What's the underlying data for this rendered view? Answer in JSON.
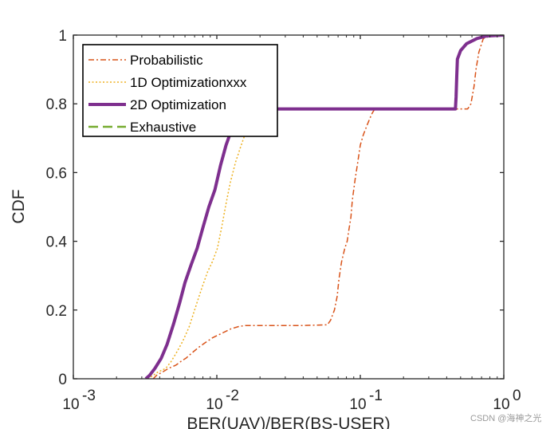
{
  "chart_data": {
    "type": "line",
    "title": "",
    "xlabel": "BER(UAV)/BER(BS-USER)",
    "ylabel": "CDF",
    "xscale": "log",
    "xlim": [
      0.001,
      1
    ],
    "ylim": [
      0,
      1
    ],
    "x_ticks": [
      {
        "value": 0.001,
        "base": "10",
        "exp": "-3"
      },
      {
        "value": 0.01,
        "base": "10",
        "exp": "-2"
      },
      {
        "value": 0.1,
        "base": "10",
        "exp": "-1"
      },
      {
        "value": 1,
        "base": "10",
        "exp": "0"
      }
    ],
    "y_ticks": [
      {
        "value": 0,
        "label": "0"
      },
      {
        "value": 0.2,
        "label": "0.2"
      },
      {
        "value": 0.4,
        "label": "0.4"
      },
      {
        "value": 0.6,
        "label": "0.6"
      },
      {
        "value": 0.8,
        "label": "0.8"
      },
      {
        "value": 1,
        "label": "1"
      }
    ],
    "legend_position": "top-left",
    "grid": false,
    "series": [
      {
        "name": "Probabilistic",
        "color": "#D95319",
        "style": "dashdot",
        "width": 1.5,
        "points": [
          [
            0.0036,
            0
          ],
          [
            0.0037,
            0.005
          ],
          [
            0.0038,
            0.01
          ],
          [
            0.0042,
            0.02
          ],
          [
            0.0046,
            0.03
          ],
          [
            0.0052,
            0.04
          ],
          [
            0.0056,
            0.05
          ],
          [
            0.0061,
            0.06
          ],
          [
            0.0067,
            0.075
          ],
          [
            0.0074,
            0.09
          ],
          [
            0.0083,
            0.105
          ],
          [
            0.0094,
            0.12
          ],
          [
            0.0108,
            0.132
          ],
          [
            0.0125,
            0.145
          ],
          [
            0.0142,
            0.152
          ],
          [
            0.0158,
            0.155
          ],
          [
            0.0178,
            0.155
          ],
          [
            0.025,
            0.155
          ],
          [
            0.04,
            0.155
          ],
          [
            0.059,
            0.157
          ],
          [
            0.062,
            0.17
          ],
          [
            0.066,
            0.2
          ],
          [
            0.069,
            0.24
          ],
          [
            0.071,
            0.29
          ],
          [
            0.074,
            0.34
          ],
          [
            0.078,
            0.38
          ],
          [
            0.081,
            0.4
          ],
          [
            0.083,
            0.43
          ],
          [
            0.086,
            0.47
          ],
          [
            0.088,
            0.52
          ],
          [
            0.092,
            0.58
          ],
          [
            0.096,
            0.63
          ],
          [
            0.1,
            0.68
          ],
          [
            0.105,
            0.71
          ],
          [
            0.112,
            0.74
          ],
          [
            0.12,
            0.77
          ],
          [
            0.126,
            0.785
          ],
          [
            0.3,
            0.785
          ],
          [
            0.56,
            0.785
          ],
          [
            0.59,
            0.8
          ],
          [
            0.62,
            0.85
          ],
          [
            0.64,
            0.9
          ],
          [
            0.67,
            0.95
          ],
          [
            0.72,
            0.99
          ],
          [
            0.8,
            0.997
          ],
          [
            1.0,
            1.0
          ]
        ]
      },
      {
        "name": "1D Optimizationxxx",
        "color": "#EDB120",
        "style": "dotted",
        "width": 1.5,
        "points": [
          [
            0.0033,
            0
          ],
          [
            0.0036,
            0.01
          ],
          [
            0.0039,
            0.02
          ],
          [
            0.0044,
            0.03
          ],
          [
            0.0048,
            0.05
          ],
          [
            0.0053,
            0.08
          ],
          [
            0.0058,
            0.11
          ],
          [
            0.0064,
            0.15
          ],
          [
            0.007,
            0.2
          ],
          [
            0.0078,
            0.26
          ],
          [
            0.0086,
            0.31
          ],
          [
            0.0093,
            0.34
          ],
          [
            0.0101,
            0.38
          ],
          [
            0.0108,
            0.44
          ],
          [
            0.0116,
            0.51
          ],
          [
            0.0124,
            0.57
          ],
          [
            0.0135,
            0.63
          ],
          [
            0.0148,
            0.68
          ],
          [
            0.016,
            0.72
          ]
        ]
      },
      {
        "name": "2D Optimization",
        "color": "#7E2F8E",
        "style": "solid",
        "width": 4,
        "points": [
          [
            0.0032,
            0
          ],
          [
            0.0034,
            0.01
          ],
          [
            0.0037,
            0.03
          ],
          [
            0.0041,
            0.06
          ],
          [
            0.0045,
            0.1
          ],
          [
            0.005,
            0.16
          ],
          [
            0.0055,
            0.22
          ],
          [
            0.006,
            0.28
          ],
          [
            0.0066,
            0.33
          ],
          [
            0.0073,
            0.38
          ],
          [
            0.008,
            0.44
          ],
          [
            0.0088,
            0.5
          ],
          [
            0.0097,
            0.55
          ],
          [
            0.0106,
            0.62
          ],
          [
            0.0116,
            0.68
          ],
          [
            0.0128,
            0.73
          ],
          [
            0.014,
            0.76
          ],
          [
            0.0155,
            0.778
          ],
          [
            0.018,
            0.785
          ],
          [
            0.05,
            0.785
          ],
          [
            0.2,
            0.785
          ],
          [
            0.46,
            0.785
          ],
          [
            0.465,
            0.82
          ],
          [
            0.47,
            0.88
          ],
          [
            0.475,
            0.93
          ],
          [
            0.5,
            0.955
          ],
          [
            0.55,
            0.975
          ],
          [
            0.65,
            0.99
          ],
          [
            0.75,
            0.997
          ],
          [
            1.0,
            1.0
          ]
        ]
      },
      {
        "name": "Exhaustive",
        "color": "#77AC30",
        "style": "dashed",
        "width": 2.5,
        "points": []
      }
    ]
  },
  "watermark": "CSDN @海神之光"
}
